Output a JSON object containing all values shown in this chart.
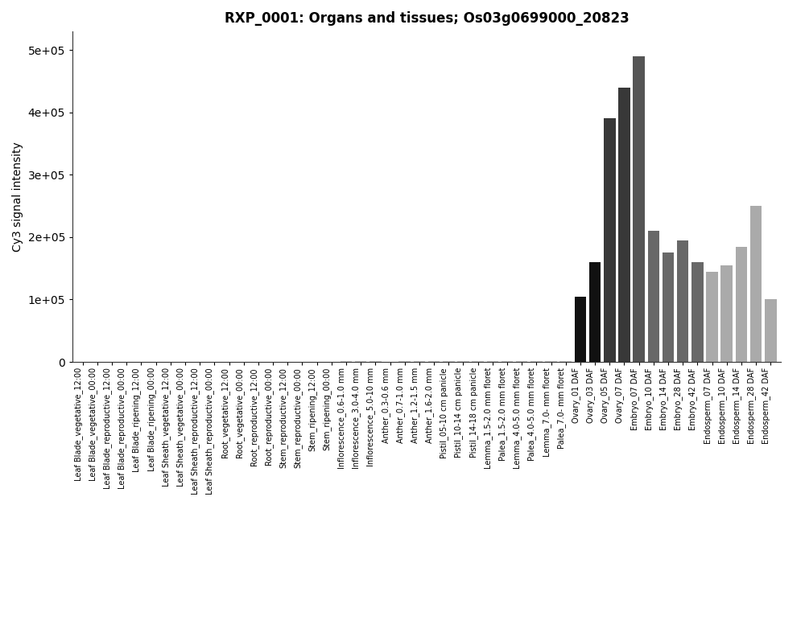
{
  "title": "RXP_0001: Organs and tissues; Os03g0699000_20823",
  "ylabel": "Cy3 signal intensity",
  "categories": [
    "Leaf Blade_vegetative_12:00",
    "Leaf Blade_vegetative_00:00",
    "Leaf Blade_reproductive_12:00",
    "Leaf Blade_reproductive_00:00",
    "Leaf Blade_ripening_12:00",
    "Leaf Blade_ripening_00:00",
    "Leaf Sheath_vegetative_12:00",
    "Leaf Sheath_vegetative_00:00",
    "Leaf Sheath_reproductive_12:00",
    "Leaf Sheath_reproductive_00:00",
    "Root_vegetative_12:00",
    "Root_vegetative_00:00",
    "Root_reproductive_12:00",
    "Root_reproductive_00:00",
    "Stem_reproductive_12:00",
    "Stem_reproductive_00:00",
    "Stem_ripening_12:00",
    "Stem_ripening_00:00",
    "Inflorescence_0.6-1.0 mm",
    "Inflorescence_3.0-4.0 mm",
    "Inflorescence_5.0-10 mm",
    "Anther_0.3-0.6 mm",
    "Anther_0.7-1.0 mm",
    "Anther_1.2-1.5 mm",
    "Anther_1.6-2.0 mm",
    "Pistil_05-10 cm panicle",
    "Pistil_10-14 cm panicle",
    "Pistil_14-18 cm panicle",
    "Lemma_1.5-2.0 mm floret",
    "Palea_1.5-2.0 mm floret",
    "Lemma_4.0-5.0 mm floret",
    "Palea_4.0-5.0 mm floret",
    "Lemma_7.0- mm floret",
    "Palea_7.0- mm floret",
    "Ovary_01 DAF",
    "Ovary_03 DAF",
    "Ovary_05 DAF",
    "Ovary_07 DAF",
    "Embryo_07 DAF",
    "Embryo_10 DAF",
    "Embryo_14 DAF",
    "Embryo_28 DAF",
    "Embryo_42 DAF",
    "Endosperm_07 DAF",
    "Endosperm_10 DAF",
    "Endosperm_14 DAF",
    "Endosperm_28 DAF",
    "Endosperm_42 DAF"
  ],
  "values": [
    500,
    400,
    600,
    500,
    400,
    600,
    300,
    400,
    500,
    600,
    400,
    500,
    400,
    500,
    600,
    500,
    700,
    600,
    1000,
    2000,
    1500,
    500,
    800,
    1200,
    1500,
    1000,
    1500,
    2000,
    1500,
    1000,
    800,
    1200,
    900,
    800,
    105000,
    160000,
    390000,
    440000,
    490000,
    210000,
    175000,
    195000,
    160000,
    145000,
    155000,
    185000,
    250000,
    100000
  ],
  "colors": [
    "#c8c8c8",
    "#c8c8c8",
    "#c8c8c8",
    "#c8c8c8",
    "#c8c8c8",
    "#c8c8c8",
    "#c8c8c8",
    "#c8c8c8",
    "#c8c8c8",
    "#c8c8c8",
    "#c8c8c8",
    "#c8c8c8",
    "#c8c8c8",
    "#c8c8c8",
    "#c8c8c8",
    "#c8c8c8",
    "#c8c8c8",
    "#c8c8c8",
    "#c8c8c8",
    "#c8c8c8",
    "#c8c8c8",
    "#c8c8c8",
    "#c8c8c8",
    "#c8c8c8",
    "#c8c8c8",
    "#c8c8c8",
    "#c8c8c8",
    "#c8c8c8",
    "#c8c8c8",
    "#c8c8c8",
    "#c8c8c8",
    "#c8c8c8",
    "#c8c8c8",
    "#c8c8c8",
    "#111111",
    "#111111",
    "#383838",
    "#383838",
    "#555555",
    "#686868",
    "#686868",
    "#686868",
    "#686868",
    "#aaaaaa",
    "#aaaaaa",
    "#aaaaaa",
    "#aaaaaa",
    "#aaaaaa"
  ],
  "ylim": [
    0,
    530000
  ],
  "yticks": [
    0,
    100000,
    200000,
    300000,
    400000,
    500000
  ],
  "ytick_labels": [
    "0",
    "1e+05",
    "2e+05",
    "3e+05",
    "4e+05",
    "5e+05"
  ],
  "figsize": [
    10.0,
    7.76
  ],
  "dpi": 100,
  "title_fontsize": 12,
  "ylabel_fontsize": 10,
  "tick_fontsize": 7
}
